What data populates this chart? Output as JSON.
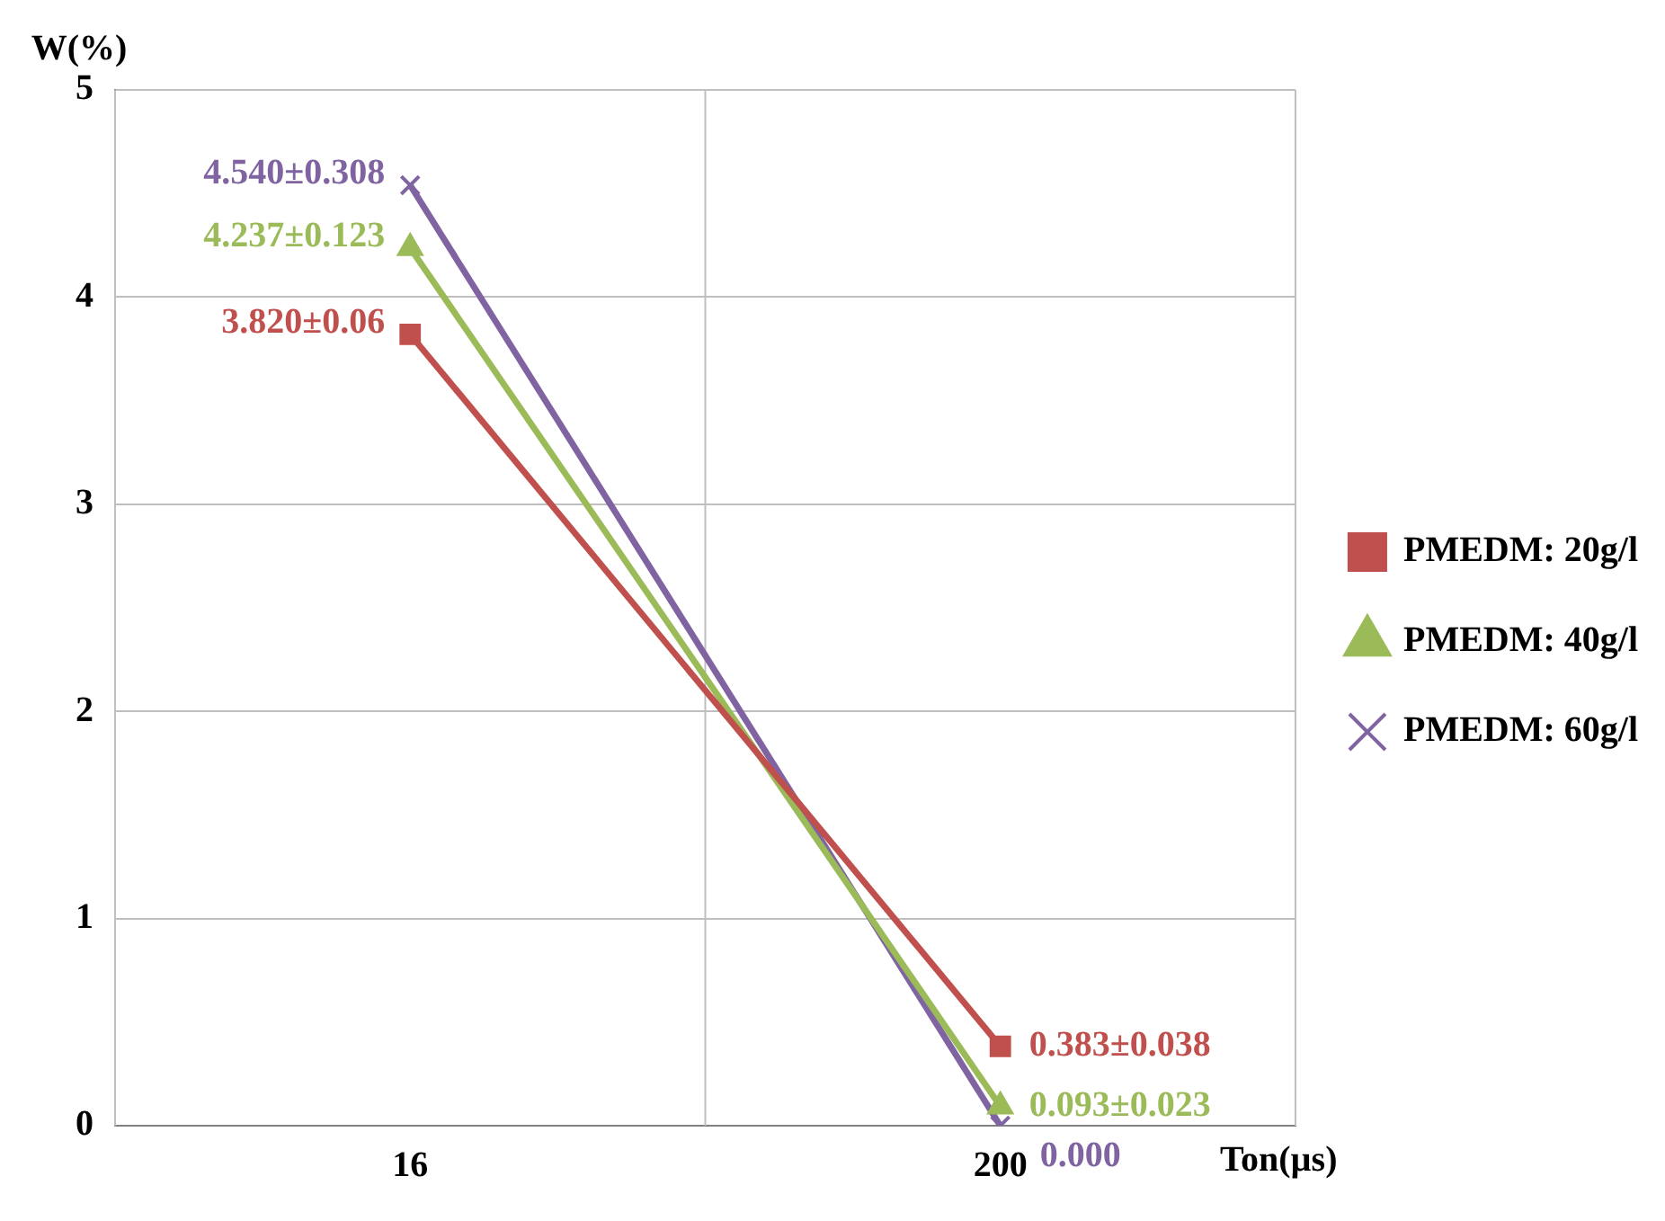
{
  "chart_data": {
    "type": "line",
    "xlabel": "Ton(µs)",
    "ylabel": "W(%)",
    "categories": [
      "16",
      "200"
    ],
    "ylim": [
      0,
      5
    ],
    "yticks": [
      0,
      1,
      2,
      3,
      4,
      5
    ],
    "grid": true,
    "legend": "right",
    "series": [
      {
        "name": "PMEDM: 20g/l",
        "color": "#c0504d",
        "marker": "square",
        "values": [
          3.82,
          0.383
        ],
        "value_labels": [
          "3.820±0.06",
          "0.383±0.038"
        ]
      },
      {
        "name": "PMEDM: 40g/l",
        "color": "#9bbb59",
        "marker": "triangle",
        "values": [
          4.237,
          0.093
        ],
        "value_labels": [
          "4.237±0.123",
          "0.093±0.023"
        ]
      },
      {
        "name": "PMEDM: 60g/l",
        "color": "#8064a2",
        "marker": "cross",
        "values": [
          4.54,
          0.0
        ],
        "value_labels": [
          "4.540±0.308",
          "0.000"
        ]
      }
    ]
  }
}
